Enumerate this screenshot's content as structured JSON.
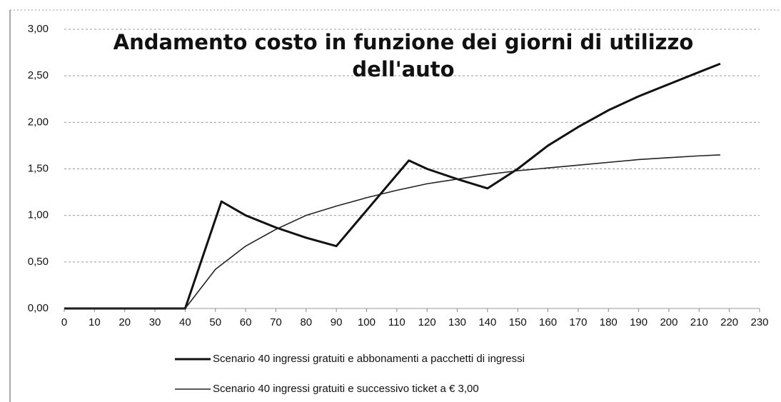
{
  "chart_data": {
    "type": "line",
    "title": "Andamento costo in funzione dei giorni di utilizzo dell'auto",
    "xlim": [
      0,
      230
    ],
    "xticks": [
      0,
      10,
      20,
      30,
      40,
      50,
      60,
      70,
      80,
      90,
      100,
      110,
      120,
      130,
      140,
      150,
      160,
      170,
      180,
      190,
      200,
      210,
      220,
      230
    ],
    "ylim": [
      0,
      3
    ],
    "yticks": [
      {
        "value": 0,
        "label": "0,00"
      },
      {
        "value": 0.5,
        "label": "0,50"
      },
      {
        "value": 1,
        "label": "1,00"
      },
      {
        "value": 1.5,
        "label": "1,50"
      },
      {
        "value": 2,
        "label": "2,00"
      },
      {
        "value": 2.5,
        "label": "2,50"
      },
      {
        "value": 3,
        "label": "3,00"
      }
    ],
    "grid": true,
    "legend": "bottom",
    "series": [
      {
        "name": "Scenario 40 ingressi gratuiti e abbonamenti a pacchetti di ingressi",
        "color": "#111111",
        "x": [
          0,
          10,
          20,
          30,
          40,
          52,
          60,
          70,
          80,
          90,
          114,
          120,
          130,
          140,
          150,
          160,
          170,
          180,
          190,
          200,
          210,
          217
        ],
        "values": [
          0,
          0,
          0,
          0,
          0,
          1.15,
          1.0,
          0.87,
          0.76,
          0.67,
          1.59,
          1.5,
          1.39,
          1.29,
          1.5,
          1.75,
          1.95,
          2.13,
          2.28,
          2.41,
          2.54,
          2.63
        ]
      },
      {
        "name": "Scenario 40 ingressi gratuiti e successivo ticket a € 3,00",
        "color": "#222222",
        "x": [
          0,
          10,
          20,
          30,
          40,
          50,
          60,
          70,
          80,
          90,
          100,
          110,
          120,
          130,
          140,
          150,
          160,
          170,
          180,
          190,
          200,
          210,
          217
        ],
        "values": [
          0,
          0,
          0,
          0,
          0,
          0.42,
          0.67,
          0.85,
          1.0,
          1.1,
          1.19,
          1.27,
          1.34,
          1.39,
          1.44,
          1.48,
          1.51,
          1.54,
          1.57,
          1.6,
          1.62,
          1.64,
          1.65
        ]
      }
    ]
  }
}
